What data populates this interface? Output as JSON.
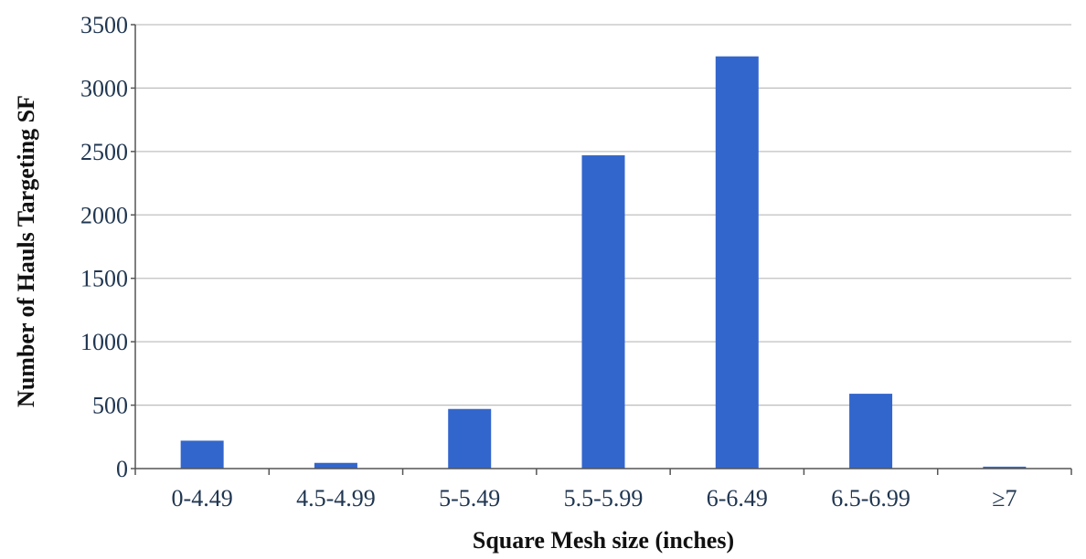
{
  "chart_data": {
    "type": "bar",
    "title": "",
    "xlabel": "Square Mesh size (inches)",
    "ylabel": "Number of Hauls Targeting SF",
    "categories": [
      "0-4.49",
      "4.5-4.99",
      "5-5.49",
      "5.5-5.99",
      "6-6.49",
      "6.5-6.99",
      "≥7"
    ],
    "values": [
      220,
      45,
      470,
      2470,
      3250,
      590,
      15
    ],
    "ylim": [
      0,
      3500
    ],
    "yticks": [
      "0",
      "500",
      "1000",
      "1500",
      "2000",
      "2500",
      "3000",
      "3500"
    ],
    "grid": true,
    "legend": "none",
    "bar_color": "#3366cc"
  }
}
